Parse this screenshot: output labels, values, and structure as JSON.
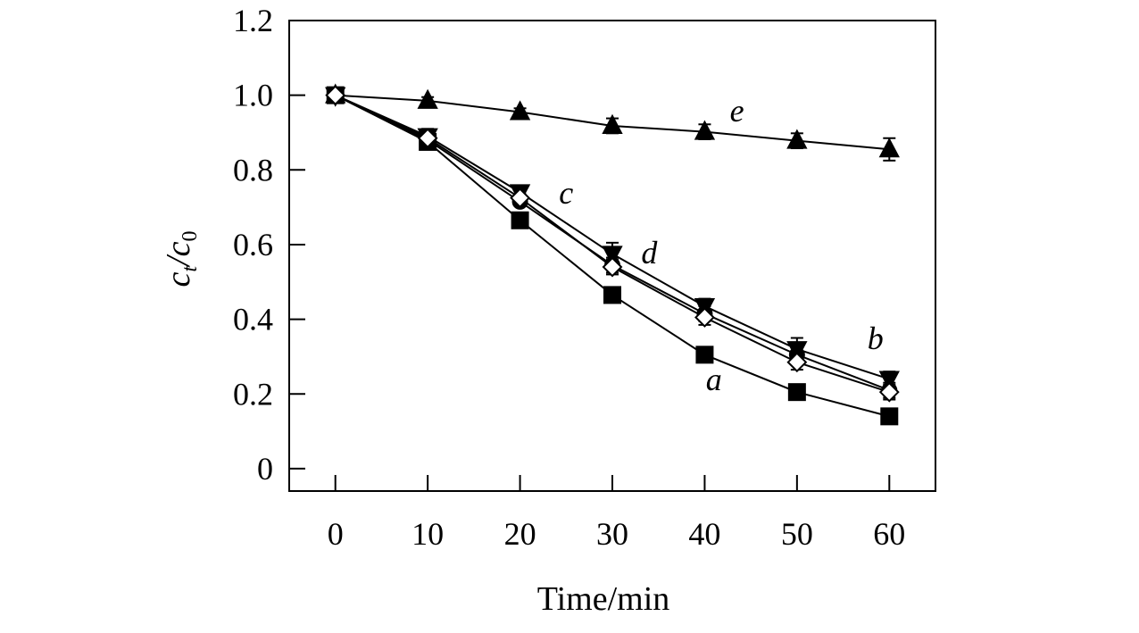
{
  "chart_data": {
    "type": "line",
    "title": "",
    "xlabel": "Time/min",
    "ylabel": {
      "main": "c",
      "sub1": "t",
      "sep": "/c",
      "sub2": "0"
    },
    "x": [
      0,
      10,
      20,
      30,
      40,
      50,
      60
    ],
    "xticks": [
      "0",
      "10",
      "20",
      "30",
      "40",
      "50",
      "60"
    ],
    "yticks": [
      "0",
      "0.2",
      "0.4",
      "0.6",
      "0.8",
      "1.0",
      "1.2"
    ],
    "xlim": [
      -5,
      65
    ],
    "ylim": [
      -0.06,
      1.2
    ],
    "grid": false,
    "series": [
      {
        "name": "a",
        "marker": "square-filled",
        "values": [
          1.0,
          0.875,
          0.665,
          0.465,
          0.305,
          0.205,
          0.14
        ],
        "errors": [
          0,
          0.01,
          0.01,
          0.02,
          0.02,
          0.01,
          0.02
        ]
      },
      {
        "name": "b",
        "marker": "circle-filled",
        "values": [
          1.0,
          0.88,
          0.715,
          0.545,
          0.415,
          0.305,
          0.21
        ],
        "errors": [
          0,
          0.01,
          0.01,
          0.02,
          0.02,
          0.02,
          0.02
        ]
      },
      {
        "name": "c",
        "marker": "triangle-down-filled",
        "values": [
          1.0,
          0.89,
          0.74,
          0.575,
          0.435,
          0.32,
          0.24
        ],
        "errors": [
          0,
          0.02,
          0.01,
          0.03,
          0.02,
          0.03,
          0.02
        ]
      },
      {
        "name": "d",
        "marker": "diamond-open",
        "values": [
          1.0,
          0.885,
          0.725,
          0.54,
          0.405,
          0.285,
          0.205
        ],
        "errors": [
          0,
          0.01,
          0.01,
          0.02,
          0.02,
          0.02,
          0.02
        ]
      },
      {
        "name": "e",
        "marker": "triangle-up-filled",
        "values": [
          1.0,
          0.985,
          0.955,
          0.918,
          0.902,
          0.878,
          0.855
        ],
        "errors": [
          0,
          0.01,
          0.01,
          0.02,
          0.02,
          0.02,
          0.03
        ]
      }
    ],
    "annotations": [
      {
        "text": "a",
        "x": 41,
        "y": 0.21
      },
      {
        "text": "b",
        "x": 58.5,
        "y": 0.32
      },
      {
        "text": "c",
        "x": 25,
        "y": 0.71
      },
      {
        "text": "d",
        "x": 34,
        "y": 0.55
      },
      {
        "text": "e",
        "x": 43.5,
        "y": 0.93
      }
    ],
    "colors": {
      "line": "#000000",
      "open_fill": "#ffffff"
    }
  }
}
